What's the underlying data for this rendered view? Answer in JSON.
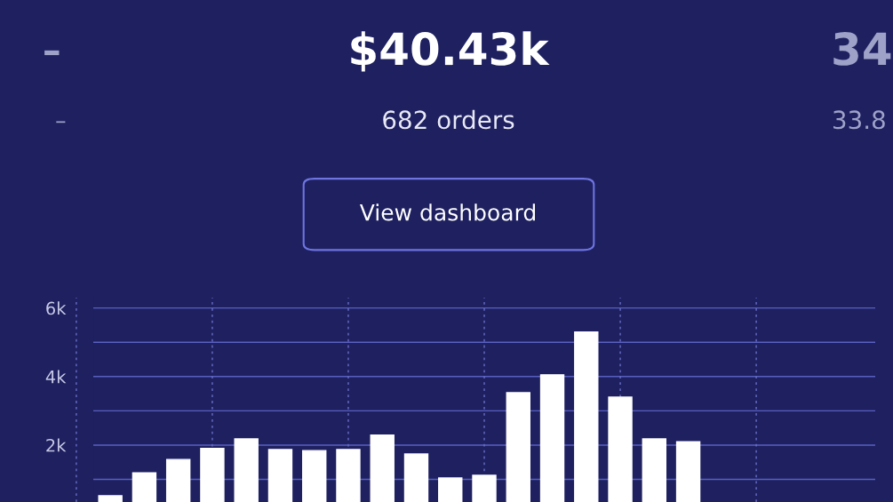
{
  "chart_data": {
    "type": "bar",
    "title": "$40.43k",
    "subtitle": "682 orders",
    "annotations": [
      "View dashboard",
      "–",
      "–",
      "34",
      "33.8"
    ],
    "categories": [
      null,
      null,
      null,
      null,
      null,
      null,
      null,
      null,
      null,
      null,
      null,
      null,
      null,
      null,
      null,
      null,
      null,
      null,
      null,
      null,
      null,
      null,
      null
    ],
    "values": [
      520,
      1190,
      1580,
      1900,
      2180,
      1870,
      1840,
      1870,
      2290,
      1740,
      1040,
      1120,
      3530,
      4050,
      5300,
      3400,
      2180,
      2100,
      null,
      null,
      null,
      null,
      null
    ],
    "color": "#ffffff",
    "ylim": [
      340,
      6300
    ],
    "yticks": [
      {
        "value": 1000,
        "label": null
      },
      {
        "value": 2000,
        "label": "2k"
      },
      {
        "value": 3000,
        "label": null
      },
      {
        "value": 4000,
        "label": "4k"
      },
      {
        "value": 5000,
        "label": null
      },
      {
        "value": 6000,
        "label": "6k"
      }
    ],
    "grid": true
  }
}
